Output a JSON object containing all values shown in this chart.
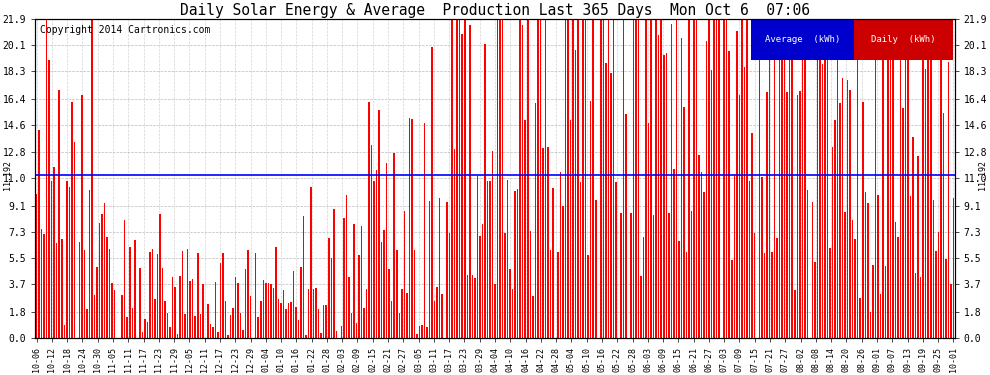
{
  "title": "Daily Solar Energy & Average  Production Last 365 Days  Mon Oct 6  07:06",
  "copyright": "Copyright 2014 Cartronics.com",
  "average_value": 11.192,
  "yticks": [
    0.0,
    1.8,
    3.7,
    5.5,
    7.3,
    9.1,
    11.0,
    12.8,
    14.6,
    16.4,
    18.3,
    20.1,
    21.9
  ],
  "ymax": 21.9,
  "ymin": 0.0,
  "bar_color": "#ff0000",
  "avg_line_color": "#0000ff",
  "bg_color": "#ffffff",
  "grid_color": "#aaaaaa",
  "legend_avg_bg": "#0000cc",
  "legend_daily_bg": "#cc0000",
  "legend_text_color": "#ffffff",
  "x_labels": [
    "10-06",
    "10-12",
    "10-18",
    "10-24",
    "10-30",
    "11-05",
    "11-11",
    "11-17",
    "11-23",
    "11-29",
    "12-05",
    "12-11",
    "12-17",
    "12-23",
    "12-29",
    "01-04",
    "01-10",
    "01-16",
    "01-22",
    "01-28",
    "02-03",
    "02-09",
    "02-15",
    "02-21",
    "02-27",
    "03-05",
    "03-11",
    "03-17",
    "03-23",
    "03-29",
    "04-04",
    "04-10",
    "04-16",
    "04-22",
    "04-28",
    "05-04",
    "05-10",
    "05-16",
    "05-22",
    "05-28",
    "06-03",
    "06-09",
    "06-15",
    "06-21",
    "06-27",
    "07-03",
    "07-09",
    "07-15",
    "07-21",
    "07-27",
    "08-02",
    "08-08",
    "08-14",
    "08-20",
    "08-26",
    "09-01",
    "09-07",
    "09-13",
    "09-19",
    "09-25",
    "10-01"
  ],
  "num_bars": 365,
  "seed": 12345
}
